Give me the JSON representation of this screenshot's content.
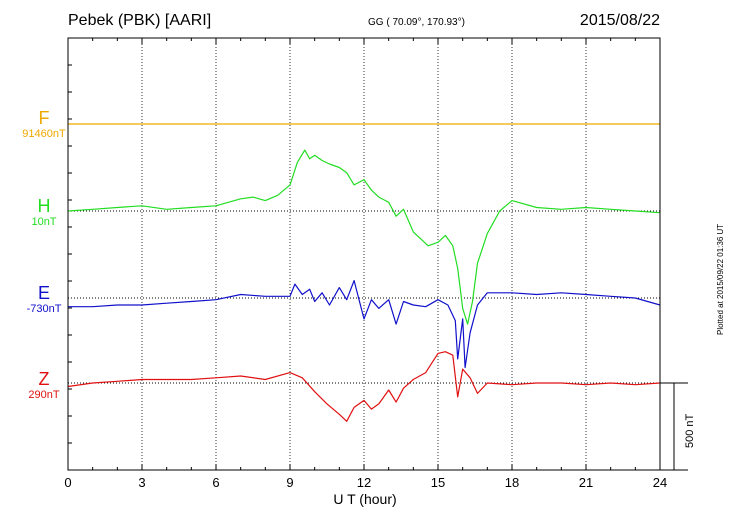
{
  "header": {
    "station": "Pebek (PBK)  [AARI]",
    "coords": "GG ( 70.09°, 170.93°)",
    "date": "2015/08/22"
  },
  "side_note": "Plotted at 2015/09/22 01:36 UT",
  "colors": {
    "F": "#f0a800",
    "H": "#22dd22",
    "E": "#1010cc",
    "Z": "#e01010"
  },
  "chart_data": {
    "type": "line",
    "title": "Pebek (PBK)  [AARI]",
    "xlabel": "U T (hour)",
    "xlim": [
      0,
      24
    ],
    "xticks": [
      "0",
      "3",
      "6",
      "9",
      "12",
      "15",
      "18",
      "21",
      "24"
    ],
    "grid": true,
    "scale_bar": "500 nT",
    "series": [
      {
        "name": "F",
        "baseline_label": "91460nT",
        "baseline": 0,
        "x": [
          0,
          24
        ],
        "y": [
          0,
          0
        ]
      },
      {
        "name": "H",
        "baseline_label": "10nT",
        "baseline": 0,
        "x": [
          0,
          1,
          2,
          3,
          4,
          5,
          6,
          7,
          7.5,
          8,
          8.5,
          9,
          9.3,
          9.6,
          9.8,
          10,
          10.3,
          10.6,
          11,
          11.3,
          11.6,
          12,
          12.3,
          12.6,
          13,
          13.3,
          13.6,
          14,
          14.3,
          14.6,
          15,
          15.3,
          15.6,
          15.8,
          16,
          16.2,
          16.4,
          16.6,
          17,
          17.5,
          18,
          19,
          20,
          21,
          22,
          23,
          24
        ],
        "y": [
          0,
          10,
          20,
          30,
          10,
          20,
          30,
          70,
          80,
          60,
          90,
          150,
          280,
          350,
          300,
          320,
          290,
          270,
          250,
          220,
          150,
          180,
          120,
          80,
          50,
          -30,
          10,
          -120,
          -160,
          -200,
          -180,
          -140,
          -200,
          -330,
          -560,
          -650,
          -520,
          -300,
          -130,
          0,
          60,
          20,
          10,
          20,
          10,
          0,
          -10
        ]
      },
      {
        "name": "E",
        "baseline_label": "-730nT",
        "baseline": 0,
        "x": [
          0,
          1,
          2,
          3,
          4,
          5,
          6,
          7,
          8,
          9,
          9.2,
          9.5,
          9.8,
          10,
          10.3,
          10.6,
          11,
          11.3,
          11.6,
          12,
          12.3,
          12.6,
          13,
          13.3,
          13.6,
          14,
          14.5,
          15,
          15.4,
          15.7,
          15.8,
          16,
          16.1,
          16.3,
          16.6,
          17,
          18,
          19,
          20,
          21,
          22,
          23,
          24
        ],
        "y": [
          -50,
          -50,
          -40,
          -40,
          -30,
          -20,
          -10,
          20,
          10,
          10,
          80,
          20,
          50,
          -20,
          30,
          -40,
          60,
          -10,
          100,
          -120,
          -10,
          -60,
          -10,
          -150,
          -20,
          -40,
          -50,
          -10,
          -40,
          -130,
          -350,
          -120,
          -400,
          -200,
          -40,
          30,
          30,
          20,
          30,
          20,
          10,
          0,
          -40
        ]
      },
      {
        "name": "Z",
        "baseline_label": "290nT",
        "baseline": 0,
        "x": [
          0,
          1,
          2,
          3,
          4,
          5,
          6,
          7,
          8,
          9,
          9.5,
          10,
          10.5,
          11,
          11.3,
          11.6,
          12,
          12.3,
          12.6,
          13,
          13.3,
          13.6,
          14,
          14.5,
          15,
          15.3,
          15.6,
          15.8,
          16,
          16.3,
          16.6,
          17,
          18,
          19,
          20,
          21,
          22,
          23,
          24
        ],
        "y": [
          -20,
          0,
          10,
          20,
          20,
          20,
          30,
          40,
          20,
          60,
          30,
          -50,
          -120,
          -180,
          -220,
          -140,
          -100,
          -150,
          -120,
          -40,
          -110,
          -30,
          20,
          60,
          170,
          180,
          160,
          -80,
          80,
          30,
          -60,
          0,
          -10,
          0,
          0,
          -10,
          0,
          -10,
          0
        ]
      }
    ]
  }
}
